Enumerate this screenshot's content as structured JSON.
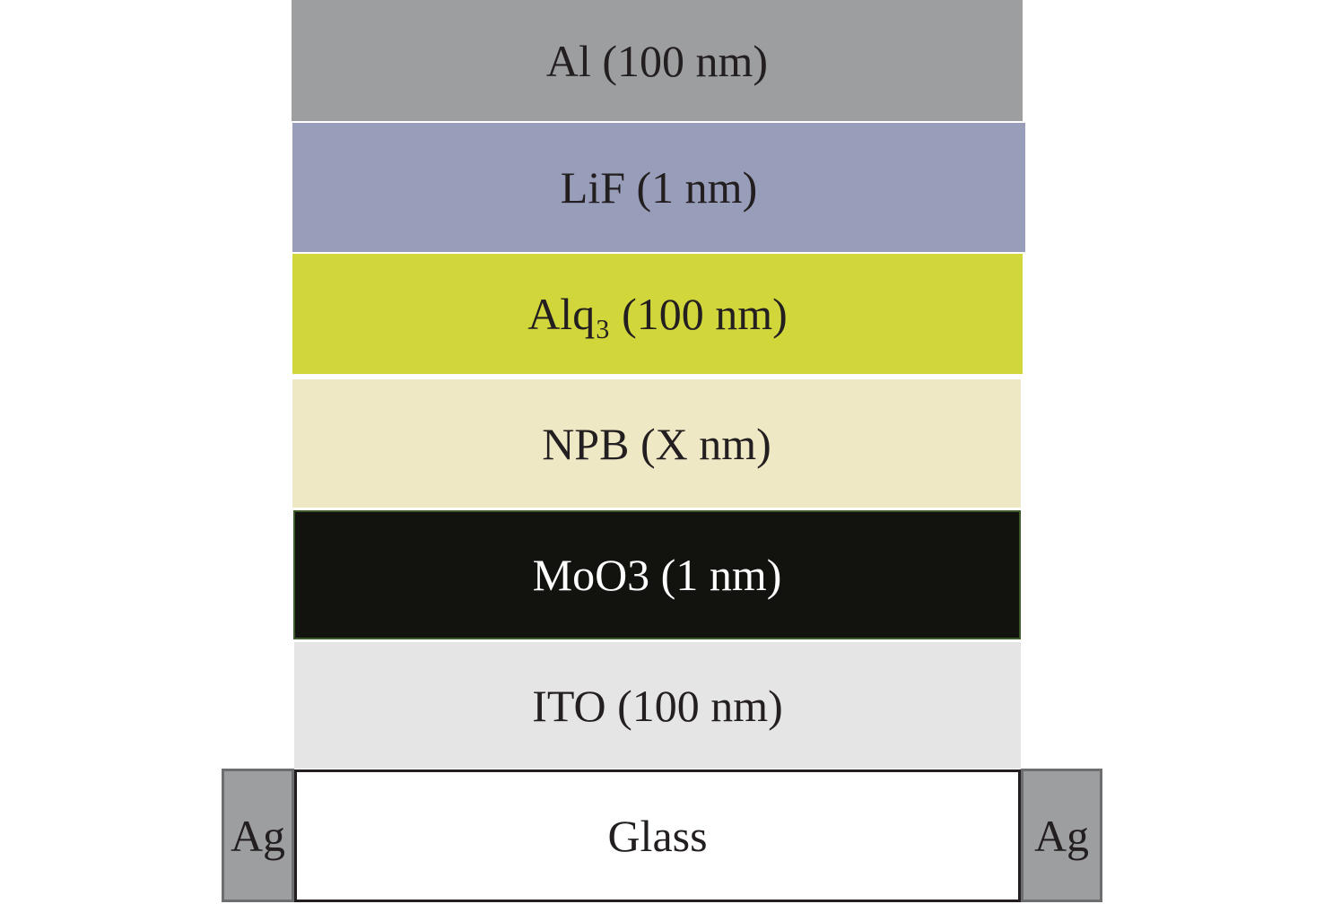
{
  "layers": [
    {
      "label": "Al (100 nm)"
    },
    {
      "label": "LiF (1 nm)"
    },
    {
      "label": "Alq₃ (100 nm)"
    },
    {
      "label": "NPB (X nm)"
    },
    {
      "label": "MoO3 (1 nm)"
    },
    {
      "label": "ITO (100 nm)"
    },
    {
      "label": "Glass"
    }
  ],
  "contacts": [
    {
      "label": "Ag"
    },
    {
      "label": "Ag"
    }
  ]
}
